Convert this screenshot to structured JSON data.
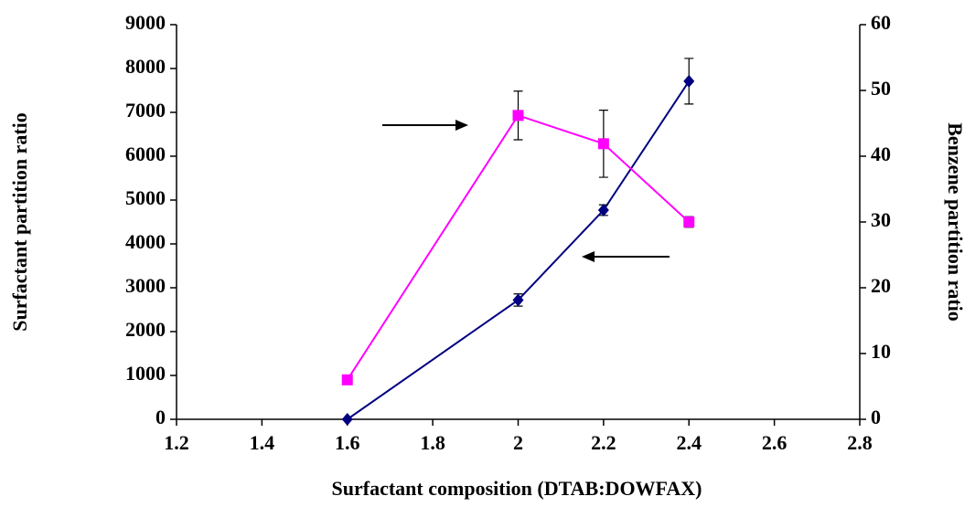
{
  "chart_data": {
    "type": "line",
    "xlabel": "Surfactant composition (DTAB:DOWFAX)",
    "ylabel": "Surfactant partition ratio",
    "y2label": "Benzene partition ratio",
    "xlim": [
      1.2,
      2.8
    ],
    "xticks": [
      1.2,
      1.4,
      1.6,
      1.8,
      2,
      2.2,
      2.4,
      2.6,
      2.8
    ],
    "ylim": [
      0,
      9000
    ],
    "yticks": [
      0,
      1000,
      2000,
      3000,
      4000,
      5000,
      6000,
      7000,
      8000,
      9000
    ],
    "y2lim": [
      0,
      60
    ],
    "y2ticks": [
      0,
      10,
      20,
      30,
      40,
      50,
      60
    ],
    "x": [
      1.6,
      2,
      2.2,
      2.4
    ],
    "series": [
      {
        "color": "#000080",
        "marker": "diamond",
        "values": [
          0,
          2720,
          4770,
          7710
        ],
        "errors": [
          0,
          140,
          120,
          520
        ]
      },
      {
        "color": "#ff00ff",
        "marker": "square",
        "axis": "y2",
        "values": [
          6,
          46.2,
          41.9,
          30
        ],
        "errors": [
          0.3,
          3.7,
          5.1,
          0.8
        ]
      }
    ]
  }
}
